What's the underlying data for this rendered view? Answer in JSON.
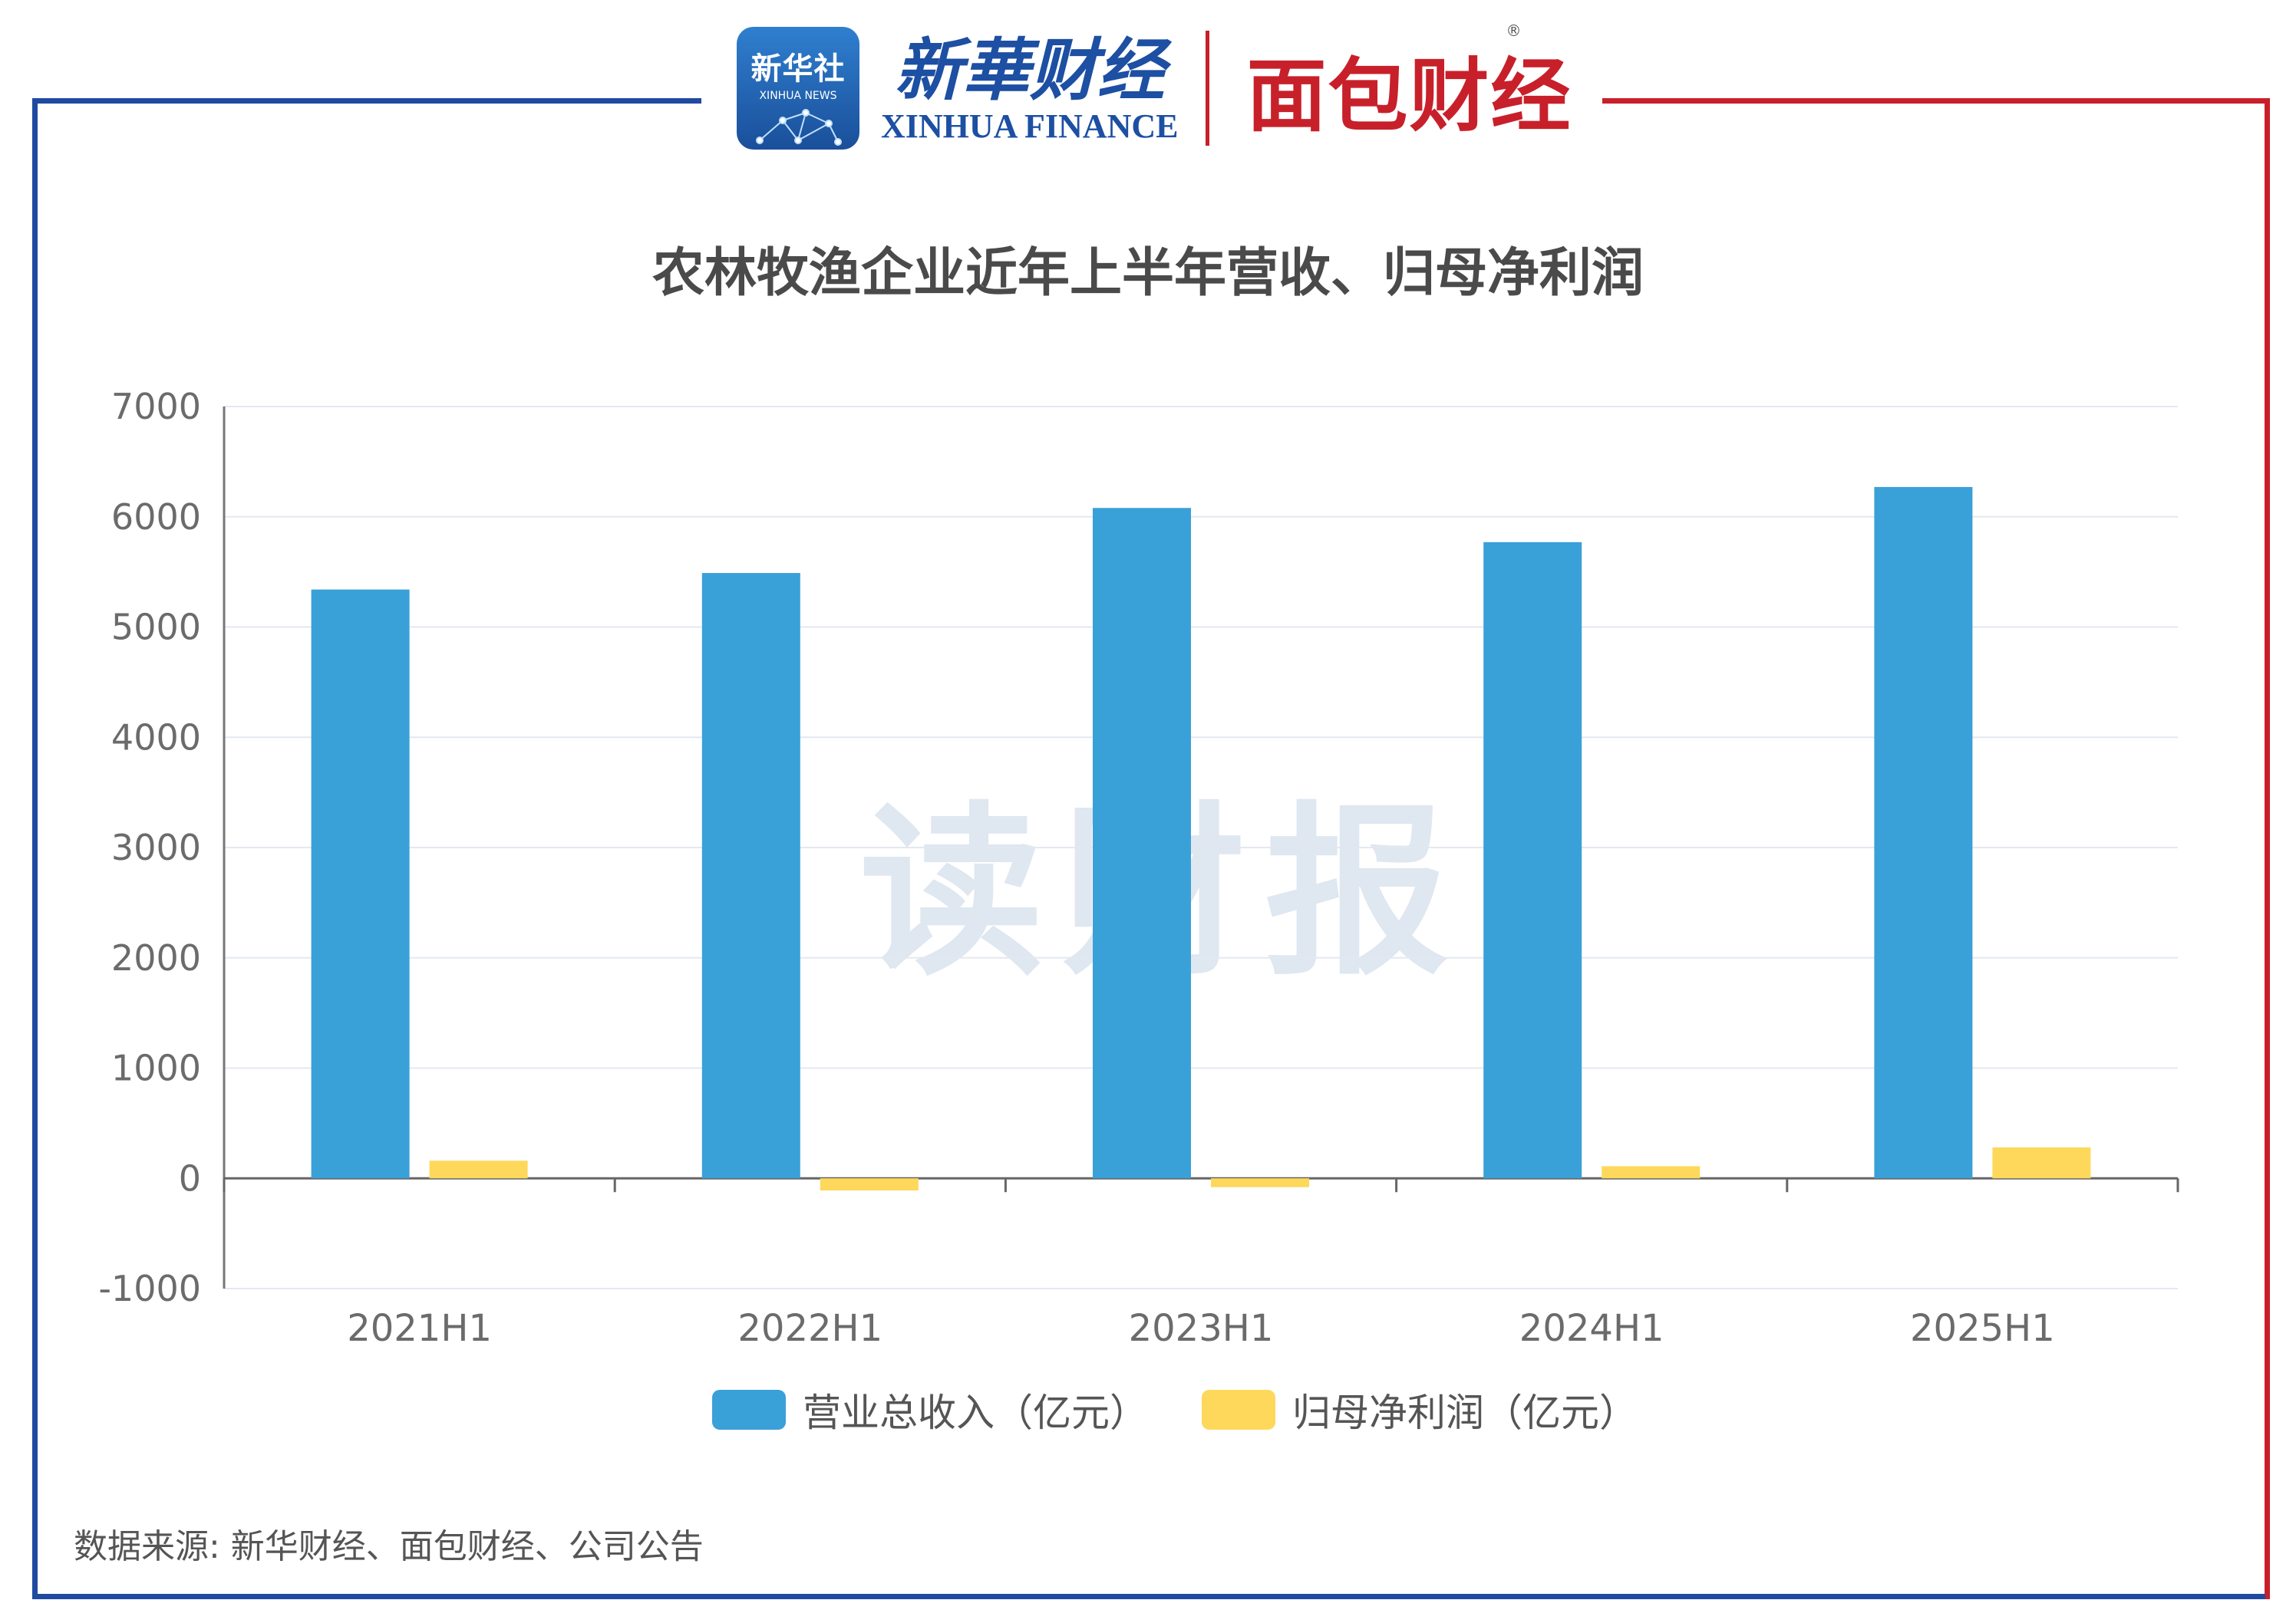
{
  "brand": {
    "badge_cn": "新华社",
    "badge_en": "XINHUA NEWS",
    "xinhua_cn": "新華财经",
    "xinhua_en": "XINHUA FINANCE",
    "mianbao": "面包财经",
    "registered": "®"
  },
  "watermark": "读财报",
  "source_note": "数据来源: 新华财经、面包财经、公司公告",
  "colors": {
    "revenue": "#3aa0d8",
    "profit": "#fdd85a",
    "frame_left": "#1f4aa0",
    "frame_right": "#c8202a"
  },
  "chart_data": {
    "type": "bar",
    "title": "农林牧渔企业近年上半年营收、归母净利润",
    "categories": [
      "2021H1",
      "2022H1",
      "2023H1",
      "2024H1",
      "2025H1"
    ],
    "series": [
      {
        "name": "营业总收入（亿元）",
        "values": [
          5340,
          5490,
          6080,
          5770,
          6270
        ]
      },
      {
        "name": "归母净利润（亿元）",
        "values": [
          160,
          -110,
          -80,
          110,
          280
        ]
      }
    ],
    "ylim": [
      -1000,
      7000
    ],
    "yticks": [
      "7000",
      "6000",
      "5000",
      "4000",
      "3000",
      "2000",
      "1000",
      "0",
      "-1000"
    ],
    "grid": true,
    "legend": "bottom"
  }
}
